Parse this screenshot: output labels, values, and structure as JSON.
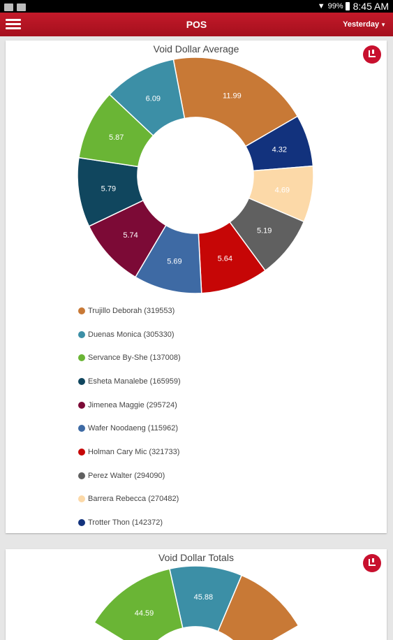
{
  "status_bar": {
    "left_icons": [
      "image-icon",
      "photo-icon"
    ],
    "battery": "99%",
    "time": "8:45 AM"
  },
  "app_bar": {
    "title": "POS",
    "period": "Yesterday"
  },
  "cards": [
    {
      "title": "Void Dollar Average",
      "chart_data": {
        "type": "pie",
        "donut": true,
        "title": "Void Dollar Average",
        "slices": [
          {
            "label": "Trujillo Deborah (319553)",
            "value": 11.99,
            "color": "#c87936",
            "text_color": "#ffffff"
          },
          {
            "label": "Trotter Thon (142372)",
            "value": 4.32,
            "color": "#12327d",
            "text_color": "#ffffff"
          },
          {
            "label": "Barrera Rebecca (270482)",
            "value": 4.69,
            "color": "#fcd9a8",
            "text_color": "#ffffff"
          },
          {
            "label": "Perez Walter (294090)",
            "value": 5.19,
            "color": "#606060",
            "text_color": "#ffffff"
          },
          {
            "label": "Holman Cary Mic (321733)",
            "value": 5.64,
            "color": "#c60606",
            "text_color": "#ffffff"
          },
          {
            "label": "Wafer Noodaeng (115962)",
            "value": 5.69,
            "color": "#3e6aa4",
            "text_color": "#ffffff"
          },
          {
            "label": "Jimenea Maggie (295724)",
            "value": 5.74,
            "color": "#7c0a36",
            "text_color": "#ffffff"
          },
          {
            "label": "Esheta Manalebe (165959)",
            "value": 5.79,
            "color": "#10465e",
            "text_color": "#ffffff"
          },
          {
            "label": "Servance By-She (137008)",
            "value": 5.87,
            "color": "#6ab535",
            "text_color": "#ffffff"
          },
          {
            "label": "Duenas Monica (305330)",
            "value": 6.09,
            "color": "#3c8fa6",
            "text_color": "#ffffff"
          }
        ]
      },
      "legend": [
        {
          "label": "Trujillo Deborah (319553)",
          "color": "#c87936"
        },
        {
          "label": "Duenas Monica (305330)",
          "color": "#3c8fa6"
        },
        {
          "label": "Servance By-She (137008)",
          "color": "#6ab535"
        },
        {
          "label": "Esheta Manalebe (165959)",
          "color": "#10465e"
        },
        {
          "label": "Jimenea Maggie (295724)",
          "color": "#7c0a36"
        },
        {
          "label": "Wafer Noodaeng (115962)",
          "color": "#3e6aa4"
        },
        {
          "label": "Holman Cary Mic (321733)",
          "color": "#c60606"
        },
        {
          "label": "Perez Walter (294090)",
          "color": "#606060"
        },
        {
          "label": "Barrera Rebecca (270482)",
          "color": "#fcd9a8"
        },
        {
          "label": "Trotter Thon (142372)",
          "color": "#12327d"
        }
      ]
    },
    {
      "title": "Void Dollar Totals",
      "chart_data": {
        "type": "pie",
        "donut": true,
        "title": "Void Dollar Totals",
        "partial": true,
        "visible_slices": [
          {
            "value": 44.59,
            "color": "#6ab535"
          },
          {
            "value": 45.88,
            "color": "#3c8fa6"
          },
          {
            "value": null,
            "color": "#c87936"
          }
        ]
      }
    }
  ]
}
